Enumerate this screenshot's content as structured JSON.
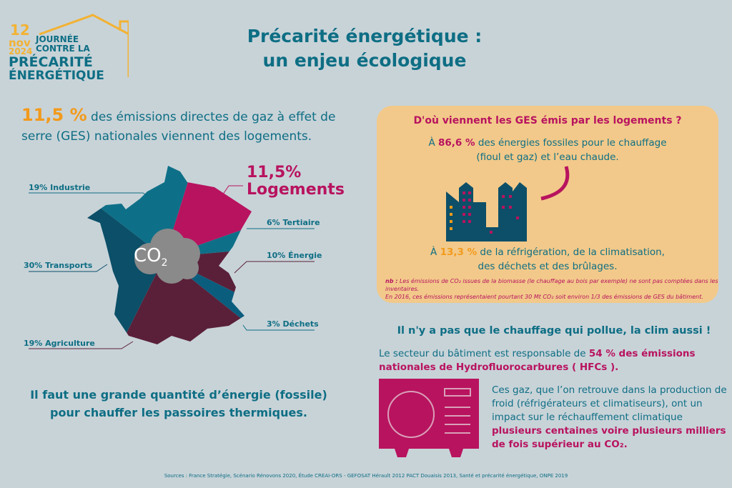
{
  "logo": {
    "day": "12",
    "month": "nov",
    "year": "2024",
    "line1": "JOURNÉE",
    "line2": "CONTRE LA",
    "line3": "PRÉCARITÉ",
    "line4": "ÉNERGÉTIQUE"
  },
  "title": {
    "line1": "Précarité énergétique :",
    "line2": "un enjeu écologique"
  },
  "intro": {
    "value": "11,5 %",
    "text": " des émissions directes de gaz à effet de serre (GES) nationales viennent des logements."
  },
  "map": {
    "cloud": "CO",
    "cloud_sub": "2",
    "sectors": [
      {
        "label": "19% Industrie",
        "value": 19,
        "color": "#0e7088"
      },
      {
        "label": "11,5%",
        "label2": "Logements",
        "value": 11.5,
        "color": "#b8135f"
      },
      {
        "label": "6% Tertiaire",
        "value": 6,
        "color": "#0e7088"
      },
      {
        "label": "10% Énergie",
        "value": 10,
        "color": "#5a2039"
      },
      {
        "label": "3% Déchets",
        "value": 3,
        "color": "#0b5d7e"
      },
      {
        "label": "19% Agriculture",
        "value": 19,
        "color": "#5a2039"
      },
      {
        "label": "30% Transports",
        "value": 30,
        "color": "#0b4f68"
      }
    ]
  },
  "bottom": "Il faut une grande quantité d’énergie (fossile) pour chauffer les passoires thermiques.",
  "panel": {
    "question": "D'où viennent les GES émis par les logements ?",
    "a_pre": "À ",
    "a_value": "86,6 %",
    "a_text": " des énergies fossiles pour le chauffage",
    "a_text2": "(fioul et gaz) et l’eau chaude.",
    "b_pre": "À ",
    "b_value": "13,3 %",
    "b_text": " de la réfrigération, de la climatisation,",
    "b_text2": "des déchets et des brûlages.",
    "nb_label": "nb :",
    "nb1": " Les émissions de CO₂ issues de la biomasse (le chauffage au bois par exemple) ne sont pas comptées dans les inventaires.",
    "nb2": "En 2016, ces émissions représentaient pourtant 30 Mt CO₂ soit environ 1/3 des émissions de GES du bâtiment."
  },
  "clim": {
    "title": "Il n'y a pas que le chauffage qui pollue, la clim aussi !",
    "hfc_pre": "Le secteur du bâtiment est responsable de ",
    "hfc_value": "54 % des émissions nationales de Hydrofluorocarbures ( HFCs ).",
    "gaz": "Ces gaz, que l’on retrouve dans la production de froid (réfrigérateurs et climatiseurs), ont un impact sur le réchauffement climatique ",
    "gaz_em": "plusieurs centaines voire plusieurs milliers de fois supérieur au CO₂."
  },
  "sources": "Sources : France Stratégie,  Scénario Rénovons 2020, Étude CREAI-ORS - GEFOSAT Hérault 2012 PACT Douaisis 2013, Santé et précarité énergétique, ONPE 2019",
  "colors": {
    "teal": "#0e6e84",
    "pink": "#b8135f",
    "orange": "#f29a1b",
    "maroon": "#5a2039",
    "panel": "#f2c98a"
  }
}
